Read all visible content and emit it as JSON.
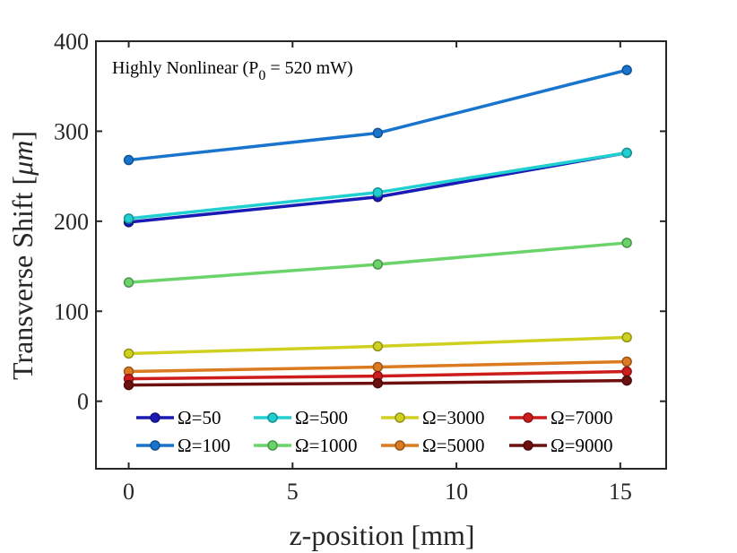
{
  "chart_data": {
    "type": "line",
    "xlabel": "z-position [mm]",
    "ylabel_main": "Transverse Shift [",
    "ylabel_unit": "μm",
    "ylabel_close": "]",
    "annotation": {
      "main": "Highly Nonlinear (P",
      "sub": "0",
      "rest": " = 520 mW)"
    },
    "xlim": [
      -1,
      16.4
    ],
    "ylim": [
      -75,
      400
    ],
    "xticks": [
      0,
      5,
      10,
      15
    ],
    "yticks": [
      0,
      100,
      200,
      300,
      400
    ],
    "x": [
      0,
      7.6,
      15.2
    ],
    "grid": false,
    "legend_position": "lower-inside",
    "series": [
      {
        "name": "Ω=50",
        "color": "#1a1ab4",
        "values": [
          199,
          227,
          276
        ]
      },
      {
        "name": "Ω=100",
        "color": "#1874cd",
        "values": [
          268,
          298,
          368
        ]
      },
      {
        "name": "Ω=500",
        "color": "#20d0d0",
        "values": [
          203,
          232,
          276
        ]
      },
      {
        "name": "Ω=1000",
        "color": "#6ad46a",
        "values": [
          132,
          152,
          176
        ]
      },
      {
        "name": "Ω=3000",
        "color": "#d0d020",
        "values": [
          53,
          61,
          71
        ]
      },
      {
        "name": "Ω=5000",
        "color": "#dc7a20",
        "values": [
          33,
          38,
          44
        ]
      },
      {
        "name": "Ω=7000",
        "color": "#cc1c1c",
        "values": [
          25,
          28,
          33
        ]
      },
      {
        "name": "Ω=9000",
        "color": "#6e1010",
        "values": [
          18,
          20,
          23
        ]
      }
    ]
  }
}
